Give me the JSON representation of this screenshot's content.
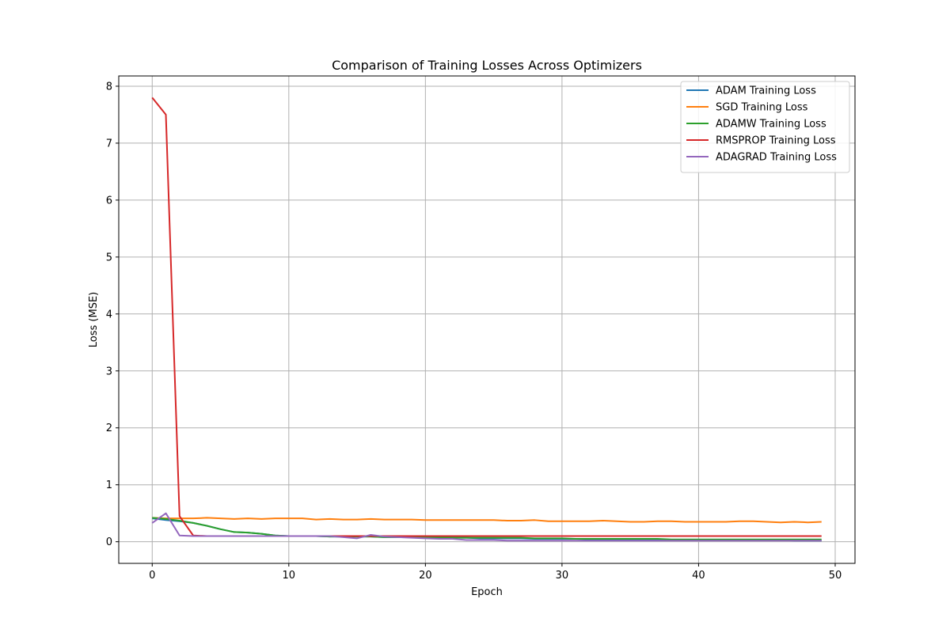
{
  "chart_data": {
    "type": "line",
    "title": "Comparison of Training Losses Across Optimizers",
    "xlabel": "Epoch",
    "ylabel": "Loss (MSE)",
    "xlim": [
      -2.45,
      51.45
    ],
    "ylim": [
      -0.38,
      8.18
    ],
    "xticks": [
      0,
      10,
      20,
      30,
      40,
      50
    ],
    "yticks": [
      0,
      1,
      2,
      3,
      4,
      5,
      6,
      7,
      8
    ],
    "grid": true,
    "legend_position": "top-right",
    "x": [
      0,
      1,
      2,
      3,
      4,
      5,
      6,
      7,
      8,
      9,
      10,
      11,
      12,
      13,
      14,
      15,
      16,
      17,
      18,
      19,
      20,
      21,
      22,
      23,
      24,
      25,
      26,
      27,
      28,
      29,
      30,
      31,
      32,
      33,
      34,
      35,
      36,
      37,
      38,
      39,
      40,
      41,
      42,
      43,
      44,
      45,
      46,
      47,
      48,
      49
    ],
    "series": [
      {
        "name": "ADAM Training Loss",
        "color": "#1f77b4",
        "values": [
          0.41,
          0.38,
          0.36,
          0.33,
          0.28,
          0.22,
          0.17,
          0.16,
          0.14,
          0.11,
          0.1,
          0.1,
          0.1,
          0.09,
          0.09,
          0.09,
          0.09,
          0.08,
          0.08,
          0.08,
          0.07,
          0.07,
          0.07,
          0.07,
          0.06,
          0.06,
          0.06,
          0.06,
          0.05,
          0.05,
          0.05,
          0.05,
          0.04,
          0.04,
          0.04,
          0.04,
          0.04,
          0.03,
          0.03,
          0.03,
          0.03,
          0.03,
          0.03,
          0.03,
          0.03,
          0.03,
          0.03,
          0.02,
          0.02,
          0.02
        ]
      },
      {
        "name": "SGD Training Loss",
        "color": "#ff7f0e",
        "values": [
          0.42,
          0.41,
          0.41,
          0.41,
          0.42,
          0.41,
          0.4,
          0.41,
          0.4,
          0.41,
          0.41,
          0.41,
          0.39,
          0.4,
          0.39,
          0.39,
          0.4,
          0.39,
          0.39,
          0.39,
          0.38,
          0.38,
          0.38,
          0.38,
          0.38,
          0.38,
          0.37,
          0.37,
          0.38,
          0.36,
          0.36,
          0.36,
          0.36,
          0.37,
          0.36,
          0.35,
          0.35,
          0.36,
          0.36,
          0.35,
          0.35,
          0.35,
          0.35,
          0.36,
          0.36,
          0.35,
          0.34,
          0.35,
          0.34,
          0.35
        ]
      },
      {
        "name": "ADAMW Training Loss",
        "color": "#2ca02c",
        "values": [
          0.42,
          0.4,
          0.37,
          0.33,
          0.28,
          0.22,
          0.17,
          0.16,
          0.14,
          0.11,
          0.1,
          0.1,
          0.1,
          0.09,
          0.09,
          0.09,
          0.09,
          0.08,
          0.08,
          0.08,
          0.08,
          0.08,
          0.07,
          0.07,
          0.07,
          0.07,
          0.07,
          0.07,
          0.06,
          0.06,
          0.06,
          0.05,
          0.05,
          0.05,
          0.05,
          0.05,
          0.05,
          0.05,
          0.04,
          0.04,
          0.04,
          0.04,
          0.04,
          0.04,
          0.04,
          0.04,
          0.04,
          0.04,
          0.04,
          0.04
        ]
      },
      {
        "name": "RMSPROP Training Loss",
        "color": "#d62728",
        "values": [
          7.8,
          7.5,
          0.45,
          0.11,
          0.1,
          0.1,
          0.1,
          0.1,
          0.1,
          0.1,
          0.1,
          0.1,
          0.1,
          0.1,
          0.1,
          0.1,
          0.1,
          0.1,
          0.1,
          0.1,
          0.1,
          0.1,
          0.1,
          0.1,
          0.1,
          0.1,
          0.1,
          0.1,
          0.1,
          0.1,
          0.1,
          0.1,
          0.1,
          0.1,
          0.1,
          0.1,
          0.1,
          0.1,
          0.1,
          0.1,
          0.1,
          0.1,
          0.1,
          0.1,
          0.1,
          0.1,
          0.1,
          0.1,
          0.1,
          0.1
        ]
      },
      {
        "name": "ADAGRAD Training Loss",
        "color": "#9467bd",
        "values": [
          0.33,
          0.5,
          0.11,
          0.1,
          0.1,
          0.1,
          0.1,
          0.1,
          0.1,
          0.1,
          0.1,
          0.1,
          0.1,
          0.1,
          0.08,
          0.06,
          0.12,
          0.09,
          0.08,
          0.07,
          0.06,
          0.05,
          0.05,
          0.03,
          0.03,
          0.03,
          0.02,
          0.02,
          0.02,
          0.02,
          0.02,
          0.02,
          0.02,
          0.02,
          0.02,
          0.02,
          0.02,
          0.02,
          0.02,
          0.02,
          0.02,
          0.02,
          0.02,
          0.02,
          0.02,
          0.02,
          0.02,
          0.02,
          0.02,
          0.02
        ]
      }
    ]
  }
}
